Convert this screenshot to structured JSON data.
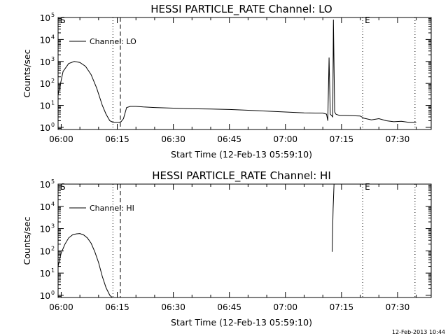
{
  "chart_data": [
    {
      "type": "line",
      "title": "HESSI PARTICLE_RATE Channel: LO",
      "xlabel": "Start Time (12-Feb-13 05:59:10)",
      "ylabel": "Counts/sec",
      "y_scale": "log",
      "ylim": [
        0.8,
        100000
      ],
      "xlim": [
        "05:59:10",
        "07:39:00"
      ],
      "x_tick_labels": [
        "06:00",
        "06:15",
        "06:30",
        "06:45",
        "07:00",
        "07:15",
        "07:30"
      ],
      "y_tick_labels": [
        {
          "base": "10",
          "exp": "0"
        },
        {
          "base": "10",
          "exp": "1"
        },
        {
          "base": "10",
          "exp": "2"
        },
        {
          "base": "10",
          "exp": "3"
        },
        {
          "base": "10",
          "exp": "4"
        },
        {
          "base": "10",
          "exp": "5"
        }
      ],
      "legend": {
        "label": "Channel: LO",
        "position": "top-left"
      },
      "markers": [
        {
          "label": "S",
          "time": "05:59:10",
          "style": "none"
        },
        {
          "label": "",
          "time": "06:13:50",
          "style": "dotted"
        },
        {
          "label": "",
          "time": "06:15:50",
          "style": "dashed"
        },
        {
          "label": "E",
          "time": "07:20:40",
          "style": "dotted"
        },
        {
          "label": "",
          "time": "07:34:40",
          "style": "dotted"
        }
      ],
      "series": [
        {
          "name": "Channel: LO",
          "x": [
            "05:59:10",
            "06:00:30",
            "06:02:00",
            "06:03:30",
            "06:05:00",
            "06:06:30",
            "06:08:00",
            "06:09:30",
            "06:11:00",
            "06:12:00",
            "06:13:00",
            "06:13:50",
            "06:14:30",
            "06:15:30",
            "06:16:00",
            "06:16:40",
            "06:17:30",
            "06:18:30",
            "06:20:00",
            "06:22:00",
            "06:25:00",
            "06:30:00",
            "06:35:00",
            "06:40:00",
            "06:45:00",
            "06:50:00",
            "06:55:00",
            "07:00:00",
            "07:05:00",
            "07:08:00",
            "07:10:00",
            "07:11:00",
            "07:11:20",
            "07:11:40",
            "07:12:00",
            "07:12:40",
            "07:12:50",
            "07:13:10",
            "07:13:30",
            "07:13:50",
            "07:14:30",
            "07:16:00",
            "07:18:00",
            "07:20:00",
            "07:21:00",
            "07:23:00",
            "07:25:00",
            "07:27:00",
            "07:29:00",
            "07:31:00",
            "07:33:00",
            "07:35:00"
          ],
          "y": [
            30,
            350,
            800,
            1000,
            900,
            600,
            250,
            60,
            10,
            4,
            2,
            1.7,
            1.7,
            1.7,
            1.8,
            2.5,
            8,
            9,
            9,
            8.5,
            8,
            7.5,
            7,
            6.8,
            6.5,
            6,
            5.5,
            5,
            4.6,
            4.5,
            4.5,
            4,
            2,
            1500,
            4,
            3,
            80000,
            5,
            4,
            3.8,
            3.5,
            3.5,
            3.4,
            3.3,
            2.6,
            2.2,
            2.5,
            2.0,
            1.8,
            1.9,
            1.7,
            1.7
          ]
        }
      ]
    },
    {
      "type": "line",
      "title": "HESSI PARTICLE_RATE Channel: HI",
      "xlabel": "Start Time (12-Feb-13 05:59:10)",
      "ylabel": "Counts/sec",
      "y_scale": "log",
      "ylim": [
        0.8,
        100000
      ],
      "xlim": [
        "05:59:10",
        "07:39:00"
      ],
      "x_tick_labels": [
        "06:00",
        "06:15",
        "06:30",
        "06:45",
        "07:00",
        "07:15",
        "07:30"
      ],
      "y_tick_labels": [
        {
          "base": "10",
          "exp": "0"
        },
        {
          "base": "10",
          "exp": "1"
        },
        {
          "base": "10",
          "exp": "2"
        },
        {
          "base": "10",
          "exp": "3"
        },
        {
          "base": "10",
          "exp": "4"
        },
        {
          "base": "10",
          "exp": "5"
        }
      ],
      "legend": {
        "label": "Channel: HI",
        "position": "top-left"
      },
      "markers": [
        {
          "label": "S",
          "time": "05:59:10",
          "style": "none"
        },
        {
          "label": "",
          "time": "06:13:50",
          "style": "dotted"
        },
        {
          "label": "",
          "time": "06:15:50",
          "style": "dashed"
        },
        {
          "label": "E",
          "time": "07:20:40",
          "style": "dotted"
        },
        {
          "label": "",
          "time": "07:34:40",
          "style": "dotted"
        }
      ],
      "series": [
        {
          "name": "Channel: HI",
          "segments": [
            {
              "x": [
                "05:59:10",
                "06:00:00",
                "06:01:00",
                "06:02:00",
                "06:03:00",
                "06:04:00",
                "06:05:00",
                "06:06:00",
                "06:07:00",
                "06:08:00",
                "06:09:00",
                "06:10:00",
                "06:11:00",
                "06:12:00",
                "06:13:00",
                "06:13:40"
              ],
              "y": [
                20,
                80,
                200,
                380,
                520,
                580,
                600,
                520,
                380,
                220,
                90,
                30,
                7,
                2.2,
                1.0,
                0.8
              ]
            },
            {
              "x": [
                "07:12:30",
                "07:12:45",
                "07:13:00"
              ],
              "y": [
                90,
                8000,
                100000
              ]
            }
          ]
        }
      ]
    }
  ],
  "footer": {
    "timestamp": "12-Feb-2013 10:44"
  }
}
